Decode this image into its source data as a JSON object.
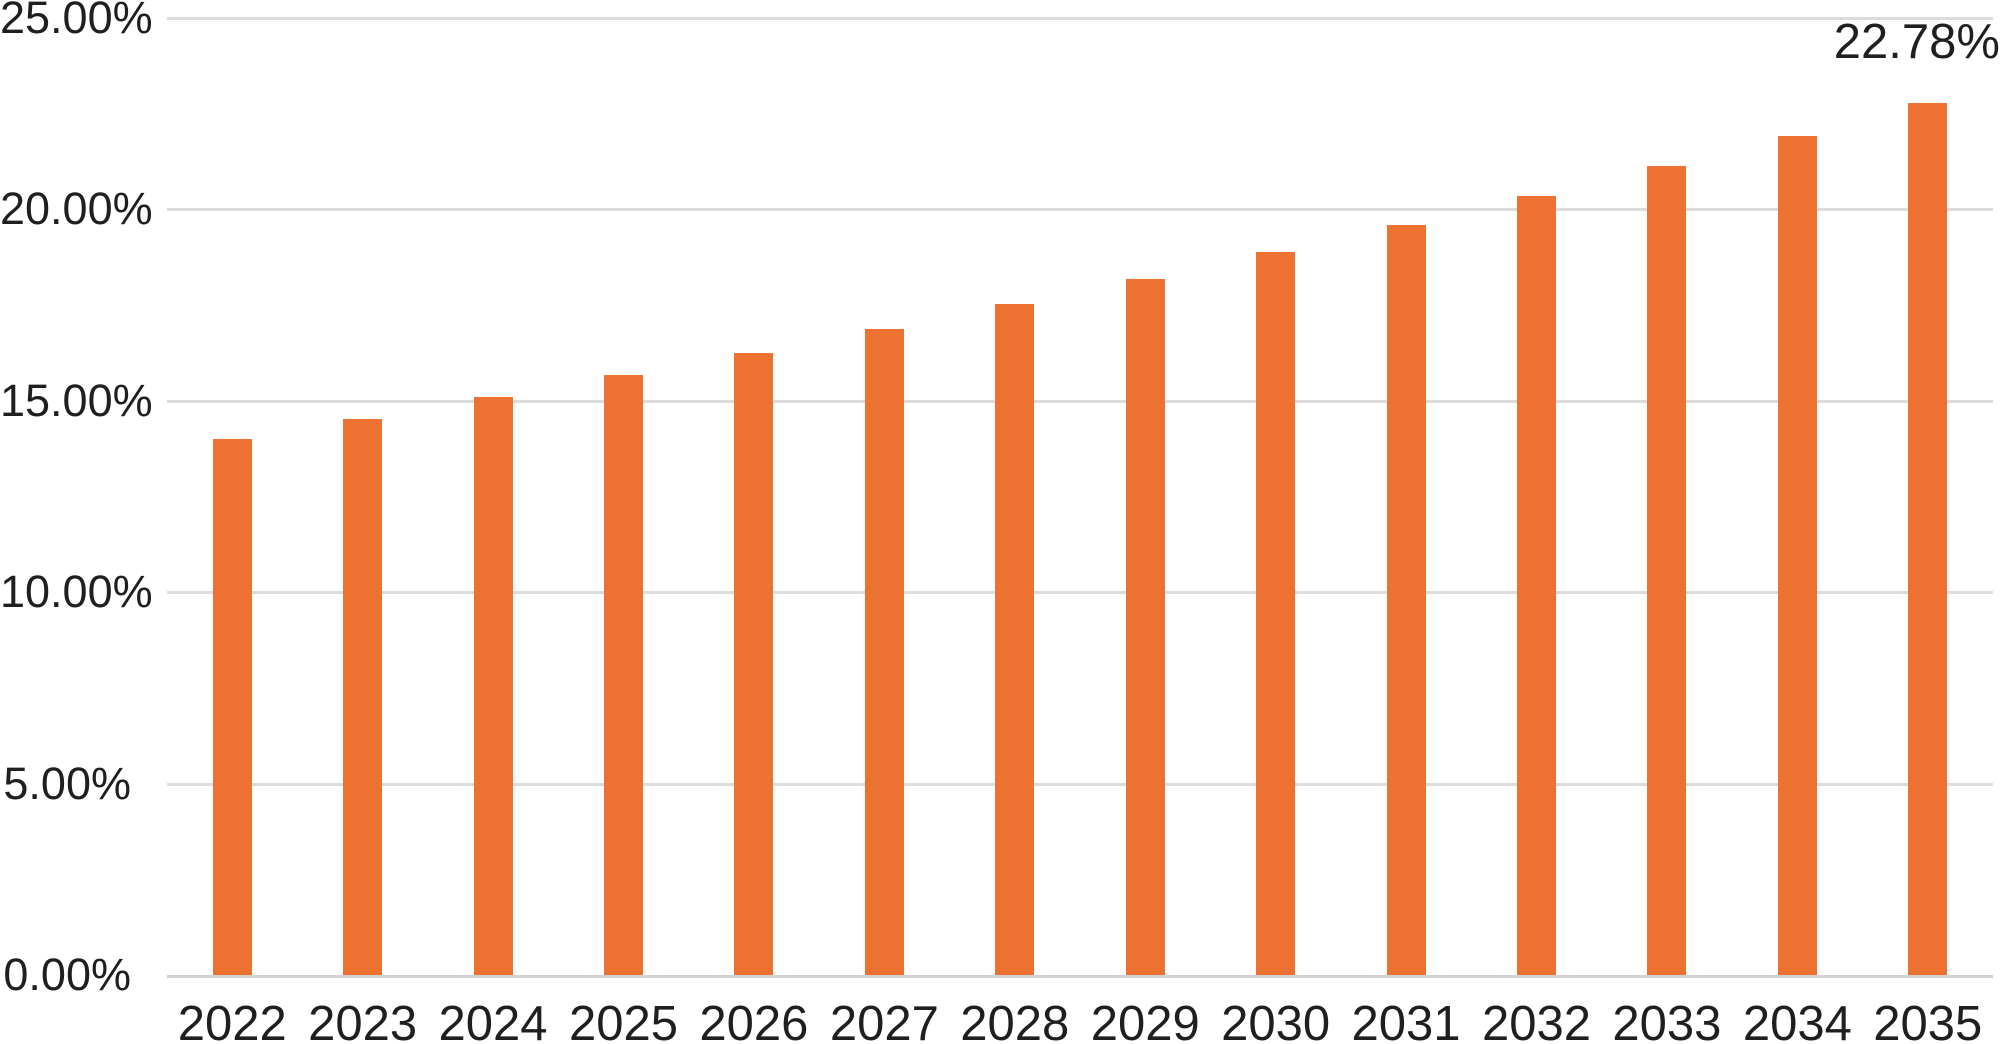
{
  "chart_data": {
    "type": "bar",
    "title": "",
    "xlabel": "",
    "ylabel": "",
    "categories": [
      "2022",
      "2023",
      "2024",
      "2025",
      "2026",
      "2027",
      "2028",
      "2029",
      "2030",
      "2031",
      "2032",
      "2033",
      "2034",
      "2035"
    ],
    "values": [
      14.0,
      14.53,
      15.09,
      15.67,
      16.26,
      16.88,
      17.52,
      18.19,
      18.88,
      19.6,
      20.35,
      21.13,
      21.93,
      22.78
    ],
    "ylim": [
      0,
      25
    ],
    "yticks": [
      0,
      5,
      10,
      15,
      20,
      25
    ],
    "ytick_labels": [
      "0.00%",
      "5.00%",
      "10.00%",
      "15.00%",
      "20.00%",
      "25.00%"
    ],
    "grid": true,
    "legend": false,
    "annotation": {
      "text": "22.78%",
      "category": "2035"
    },
    "colors": {
      "bar_fill": "#ED7231",
      "gridline": "#DCDCDC",
      "axis_line": "#D2D2D2",
      "text": "#1F1F1F",
      "background": "#FFFFFF"
    }
  }
}
